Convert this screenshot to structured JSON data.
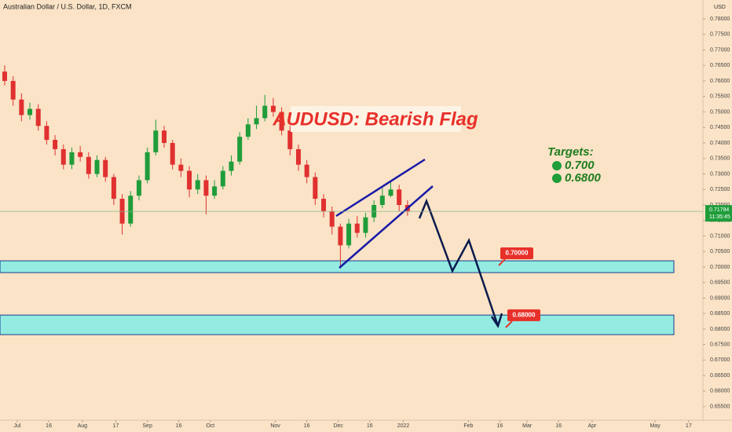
{
  "chart_data": {
    "type": "candlestick",
    "title": "Australian Dollar / U.S. Dollar, 1D, FXCM",
    "currency": "USD",
    "x": [
      -6,
      -2,
      2,
      6,
      10,
      14,
      18,
      22,
      26,
      30,
      34,
      38,
      42,
      46,
      50,
      54,
      58,
      62,
      66,
      70,
      74,
      78,
      82,
      86,
      90,
      94,
      98,
      102,
      106,
      110,
      114,
      118,
      122,
      126,
      130,
      134,
      138,
      142,
      146,
      150,
      154,
      158,
      162,
      166,
      170,
      174,
      178,
      182,
      186
    ],
    "open": [
      0.763,
      0.76,
      0.754,
      0.749,
      0.751,
      0.7455,
      0.741,
      0.738,
      0.733,
      0.737,
      0.7355,
      0.73,
      0.7345,
      0.729,
      0.722,
      0.714,
      0.723,
      0.728,
      0.737,
      0.744,
      0.74,
      0.733,
      0.731,
      0.725,
      0.728,
      0.723,
      0.726,
      0.731,
      0.734,
      0.742,
      0.746,
      0.748,
      0.752,
      0.75,
      0.744,
      0.738,
      0.733,
      0.729,
      0.722,
      0.718,
      0.713,
      0.707,
      0.714,
      0.711,
      0.716,
      0.72,
      0.723,
      0.725,
      0.72
    ],
    "high": [
      0.765,
      0.7615,
      0.756,
      0.753,
      0.7525,
      0.747,
      0.7425,
      0.7395,
      0.7385,
      0.739,
      0.737,
      0.736,
      0.7355,
      0.73,
      0.7235,
      0.7245,
      0.7295,
      0.7385,
      0.7475,
      0.7455,
      0.741,
      0.735,
      0.7325,
      0.73,
      0.7295,
      0.728,
      0.7325,
      0.736,
      0.7435,
      0.748,
      0.752,
      0.7555,
      0.7545,
      0.7515,
      0.7455,
      0.7395,
      0.7345,
      0.7305,
      0.7235,
      0.7195,
      0.714,
      0.7155,
      0.7165,
      0.7175,
      0.7215,
      0.7255,
      0.728,
      0.7265,
      0.7215
    ],
    "low": [
      0.7585,
      0.752,
      0.747,
      0.7475,
      0.744,
      0.7395,
      0.736,
      0.7315,
      0.7315,
      0.734,
      0.7285,
      0.729,
      0.7275,
      0.72,
      0.7105,
      0.713,
      0.7215,
      0.727,
      0.736,
      0.7385,
      0.7315,
      0.729,
      0.7225,
      0.7235,
      0.717,
      0.722,
      0.725,
      0.7295,
      0.733,
      0.741,
      0.7445,
      0.747,
      0.7485,
      0.7425,
      0.736,
      0.731,
      0.727,
      0.72,
      0.716,
      0.7105,
      0.6995,
      0.706,
      0.7095,
      0.7095,
      0.7145,
      0.719,
      0.7225,
      0.718,
      0.7165
    ],
    "close": [
      0.76,
      0.754,
      0.749,
      0.751,
      0.7455,
      0.741,
      0.738,
      0.733,
      0.737,
      0.7355,
      0.73,
      0.7345,
      0.729,
      0.722,
      0.714,
      0.723,
      0.728,
      0.737,
      0.744,
      0.74,
      0.733,
      0.731,
      0.725,
      0.728,
      0.723,
      0.726,
      0.731,
      0.734,
      0.742,
      0.746,
      0.748,
      0.752,
      0.75,
      0.744,
      0.738,
      0.733,
      0.729,
      0.722,
      0.718,
      0.713,
      0.707,
      0.714,
      0.711,
      0.716,
      0.72,
      0.723,
      0.725,
      0.72,
      0.7179
    ],
    "up_color": "#1f9d3a",
    "down_color": "#e0302f",
    "xlim": [
      -8.24,
      326.8
    ],
    "xticks": [
      {
        "value": 0,
        "label": "Jul"
      },
      {
        "value": 15,
        "label": "16"
      },
      {
        "value": 31,
        "label": "Aug"
      },
      {
        "value": 47,
        "label": "17"
      },
      {
        "value": 62,
        "label": "Sep"
      },
      {
        "value": 77,
        "label": "16"
      },
      {
        "value": 92,
        "label": "Oct"
      },
      {
        "value": 123,
        "label": "Nov"
      },
      {
        "value": 138,
        "label": "16"
      },
      {
        "value": 153,
        "label": "Dec"
      },
      {
        "value": 168,
        "label": "16"
      },
      {
        "value": 184,
        "label": "2022"
      },
      {
        "value": 215,
        "label": "Feb"
      },
      {
        "value": 230,
        "label": "16"
      },
      {
        "value": 243,
        "label": "Mar"
      },
      {
        "value": 258,
        "label": "16"
      },
      {
        "value": 274,
        "label": "Apr"
      },
      {
        "value": 304,
        "label": "May"
      },
      {
        "value": 320,
        "label": "17"
      }
    ],
    "ylim": [
      0.6506,
      0.7861
    ],
    "yticks": [
      {
        "value": 0.655,
        "label": "0.65500"
      },
      {
        "value": 0.66,
        "label": "0.66000"
      },
      {
        "value": 0.665,
        "label": "0.66500"
      },
      {
        "value": 0.67,
        "label": "0.67000"
      },
      {
        "value": 0.675,
        "label": "0.67500"
      },
      {
        "value": 0.68,
        "label": "0.68000"
      },
      {
        "value": 0.685,
        "label": "0.68500"
      },
      {
        "value": 0.69,
        "label": "0.69000"
      },
      {
        "value": 0.695,
        "label": "0.69500"
      },
      {
        "value": 0.7,
        "label": "0.70000"
      },
      {
        "value": 0.705,
        "label": "0.70500"
      },
      {
        "value": 0.71,
        "label": "0.71000"
      },
      {
        "value": 0.715,
        "label": "0.71500"
      },
      {
        "value": 0.72,
        "label": "0.72000"
      },
      {
        "value": 0.725,
        "label": "0.72500"
      },
      {
        "value": 0.73,
        "label": "0.73000"
      },
      {
        "value": 0.735,
        "label": "0.73500"
      },
      {
        "value": 0.74,
        "label": "0.74000"
      },
      {
        "value": 0.745,
        "label": "0.74500"
      },
      {
        "value": 0.75,
        "label": "0.75000"
      },
      {
        "value": 0.755,
        "label": "0.75500"
      },
      {
        "value": 0.76,
        "label": "0.76000"
      },
      {
        "value": 0.765,
        "label": "0.76500"
      },
      {
        "value": 0.77,
        "label": "0.77000"
      },
      {
        "value": 0.775,
        "label": "0.77500"
      },
      {
        "value": 0.78,
        "label": "0.78000"
      }
    ],
    "last_price": {
      "value": 0.71794,
      "label": "0.71794",
      "time": "11:35:45"
    },
    "zones": [
      [
        0.702,
        0.6982
      ],
      [
        0.6845,
        0.6782
      ]
    ],
    "targets": [
      {
        "value": 0.7,
        "label": "0.70000"
      },
      {
        "value": 0.68,
        "label": "0.68000"
      }
    ],
    "annotations": {
      "headline": "AUDUSD: Bearish Flag",
      "targets_title": "Targets:",
      "target_1": "0.700",
      "target_2": "0.6800"
    }
  }
}
